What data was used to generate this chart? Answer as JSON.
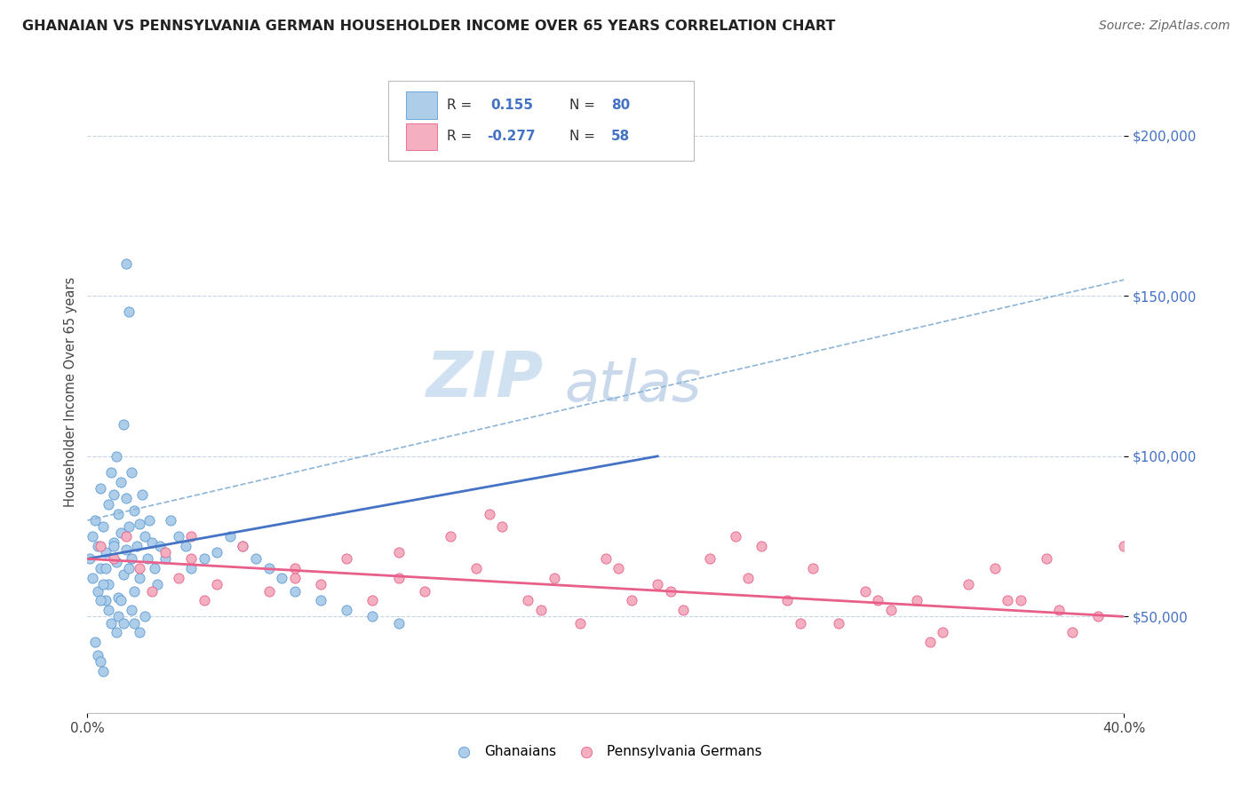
{
  "title": "GHANAIAN VS PENNSYLVANIA GERMAN HOUSEHOLDER INCOME OVER 65 YEARS CORRELATION CHART",
  "source": "Source: ZipAtlas.com",
  "ylabel": "Householder Income Over 65 years",
  "xlim": [
    0.0,
    0.4
  ],
  "ylim": [
    20000,
    220000
  ],
  "ytick_positions": [
    50000,
    100000,
    150000,
    200000
  ],
  "ytick_labels": [
    "$50,000",
    "$100,000",
    "$150,000",
    "$200,000"
  ],
  "watermark_zip": "ZIP",
  "watermark_atlas": "atlas",
  "ghanaian_color": "#aecde8",
  "penn_german_color": "#f4afc0",
  "ghanaian_edge_color": "#5b9bd5",
  "penn_german_edge_color": "#e8608a",
  "ghanaian_line_color": "#4472c4",
  "penn_german_line_color": "#e8608a",
  "dashed_line_color": "#8ab4d8",
  "background_color": "#ffffff",
  "grid_color": "#c8d4e8",
  "ghanaians_x": [
    0.001,
    0.002,
    0.002,
    0.003,
    0.004,
    0.004,
    0.005,
    0.005,
    0.006,
    0.007,
    0.007,
    0.008,
    0.008,
    0.009,
    0.01,
    0.01,
    0.011,
    0.011,
    0.012,
    0.012,
    0.013,
    0.013,
    0.014,
    0.014,
    0.015,
    0.015,
    0.016,
    0.016,
    0.017,
    0.017,
    0.018,
    0.018,
    0.019,
    0.02,
    0.02,
    0.021,
    0.022,
    0.023,
    0.024,
    0.025,
    0.026,
    0.027,
    0.028,
    0.03,
    0.032,
    0.035,
    0.038,
    0.04,
    0.045,
    0.05,
    0.055,
    0.06,
    0.065,
    0.07,
    0.075,
    0.08,
    0.09,
    0.1,
    0.11,
    0.12,
    0.005,
    0.006,
    0.007,
    0.008,
    0.009,
    0.01,
    0.011,
    0.012,
    0.013,
    0.014,
    0.015,
    0.016,
    0.017,
    0.018,
    0.003,
    0.004,
    0.005,
    0.006,
    0.02,
    0.022
  ],
  "ghanaians_y": [
    68000,
    75000,
    62000,
    80000,
    58000,
    72000,
    90000,
    65000,
    78000,
    55000,
    70000,
    85000,
    60000,
    95000,
    73000,
    88000,
    67000,
    100000,
    82000,
    56000,
    76000,
    92000,
    63000,
    110000,
    87000,
    71000,
    78000,
    65000,
    68000,
    95000,
    83000,
    58000,
    72000,
    79000,
    62000,
    88000,
    75000,
    68000,
    80000,
    73000,
    65000,
    60000,
    72000,
    68000,
    80000,
    75000,
    72000,
    65000,
    68000,
    70000,
    75000,
    72000,
    68000,
    65000,
    62000,
    58000,
    55000,
    52000,
    50000,
    48000,
    55000,
    60000,
    65000,
    52000,
    48000,
    72000,
    45000,
    50000,
    55000,
    48000,
    160000,
    145000,
    52000,
    48000,
    42000,
    38000,
    36000,
    33000,
    45000,
    50000
  ],
  "penn_german_x": [
    0.005,
    0.01,
    0.015,
    0.02,
    0.025,
    0.03,
    0.035,
    0.04,
    0.045,
    0.05,
    0.06,
    0.07,
    0.08,
    0.09,
    0.1,
    0.11,
    0.12,
    0.13,
    0.14,
    0.15,
    0.16,
    0.17,
    0.18,
    0.19,
    0.2,
    0.21,
    0.22,
    0.23,
    0.24,
    0.25,
    0.26,
    0.27,
    0.28,
    0.29,
    0.3,
    0.31,
    0.32,
    0.33,
    0.34,
    0.35,
    0.36,
    0.37,
    0.38,
    0.39,
    0.4,
    0.155,
    0.175,
    0.205,
    0.225,
    0.255,
    0.275,
    0.305,
    0.325,
    0.355,
    0.375,
    0.04,
    0.08,
    0.12
  ],
  "penn_german_y": [
    72000,
    68000,
    75000,
    65000,
    58000,
    70000,
    62000,
    68000,
    55000,
    60000,
    72000,
    58000,
    65000,
    60000,
    68000,
    55000,
    62000,
    58000,
    75000,
    65000,
    78000,
    55000,
    62000,
    48000,
    68000,
    55000,
    60000,
    52000,
    68000,
    75000,
    72000,
    55000,
    65000,
    48000,
    58000,
    52000,
    55000,
    45000,
    60000,
    65000,
    55000,
    68000,
    45000,
    50000,
    72000,
    82000,
    52000,
    65000,
    58000,
    62000,
    48000,
    55000,
    42000,
    55000,
    52000,
    75000,
    62000,
    70000
  ],
  "ghanaian_trendline_x": [
    0.0,
    0.22
  ],
  "ghanaian_trendline_y": [
    68000,
    100000
  ],
  "penn_german_trendline_x": [
    0.0,
    0.4
  ],
  "penn_german_trendline_y": [
    68000,
    50000
  ],
  "dashed_trendline_x": [
    0.0,
    0.4
  ],
  "dashed_trendline_y": [
    80000,
    155000
  ]
}
